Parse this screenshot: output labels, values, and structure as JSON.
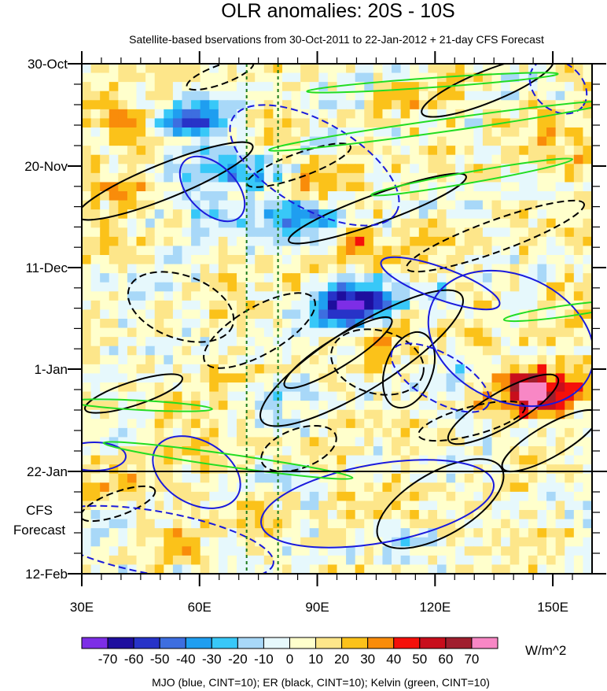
{
  "chart_data": {
    "type": "heatmap",
    "title": "OLR anomalies: 20S - 10S",
    "subtitle": "Satellite-based bservations from 30-Oct-2011 to 22-Jan-2012 + 21-day CFS Forecast",
    "x_ticks": [
      {
        "label": "30E",
        "value": 30
      },
      {
        "label": "60E",
        "value": 60
      },
      {
        "label": "90E",
        "value": 90
      },
      {
        "label": "120E",
        "value": 120
      },
      {
        "label": "150E",
        "value": 150
      }
    ],
    "xlim": [
      30,
      160
    ],
    "y_ticks": [
      {
        "label": "30-Oct",
        "day": 0
      },
      {
        "label": "20-Nov",
        "day": 21
      },
      {
        "label": "11-Dec",
        "day": 42
      },
      {
        "label": "1-Jan",
        "day": 63
      },
      {
        "label": "22-Jan",
        "day": 84
      },
      {
        "label": "12-Feb",
        "day": 105
      }
    ],
    "forecast_label_1": "CFS",
    "forecast_label_2": "Forecast",
    "forecast_start_label": "22-Jan",
    "reference_longitudes": [
      72,
      80
    ],
    "colorbar": {
      "unit": "W/m^2",
      "tick_labels": [
        "-70",
        "-60",
        "-50",
        "-40",
        "-30",
        "-20",
        "-10",
        "0",
        "10",
        "20",
        "30",
        "40",
        "50",
        "60",
        "70"
      ],
      "colors": [
        "#7d2ee6",
        "#1e0e9e",
        "#2733c8",
        "#3d6ee0",
        "#1f9ef0",
        "#38c8f8",
        "#a8d8f8",
        "#e6f8fc",
        "#ffffcc",
        "#fde68a",
        "#fbc21a",
        "#f98c0a",
        "#f5100a",
        "#c80e1c",
        "#a01e2e",
        "#f887c5"
      ]
    },
    "footnote": "MJO (blue, CINT=10); ER (black, CINT=10); Kelvin (green, CINT=10)",
    "overlays": [
      {
        "series": "MJO",
        "color": "#1a1adc"
      },
      {
        "series": "ER",
        "color": "#000000"
      },
      {
        "series": "Kelvin",
        "color": "#22dd22"
      }
    ]
  }
}
